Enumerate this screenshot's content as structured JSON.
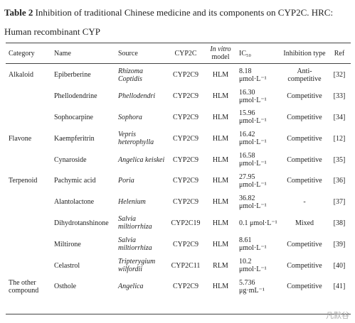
{
  "header": {
    "label": "Table 2",
    "title": "Inhibition of traditional Chinese medicine and its components on CYP2C. HRC: Human recombinant CYP"
  },
  "table": {
    "columns": {
      "category": "Category",
      "name": "Name",
      "source": "Source",
      "enzyme": "CYP2C",
      "model_italic": "In vitro",
      "model": "model",
      "ic50": "IC₅₀",
      "inhibition": "Inhibition type",
      "ref": "Ref"
    },
    "rows": [
      {
        "category": "Alkaloid",
        "name": "Epiberberine",
        "source": "Rhizoma Coptidis",
        "enzyme": "CYP2C9",
        "model": "HLM",
        "ic50_value": "8.18",
        "ic50_unit": "μmol·L⁻¹",
        "inhibition": "Anti-competitive",
        "ref": "[32]"
      },
      {
        "name": "Phellodendrine",
        "source": "Phellodendri",
        "enzyme": "CYP2C9",
        "model": "HLM",
        "ic50_value": "16.30",
        "ic50_unit": "μmol·L⁻¹",
        "inhibition": "Competitive",
        "ref": "[33]"
      },
      {
        "name": "Sophocarpine",
        "source": "Sophora",
        "enzyme": "CYP2C9",
        "model": "HLM",
        "ic50_value": "15.96",
        "ic50_unit": "μmol·L⁻¹",
        "inhibition": "Competitive",
        "ref": "[34]"
      },
      {
        "category": "Flavone",
        "name": "Kaempferitrin",
        "source": "Vepris heterophylla",
        "enzyme": "CYP2C9",
        "model": "HLM",
        "ic50_value": "16.42",
        "ic50_unit": "μmol·L⁻¹",
        "inhibition": "Competitive",
        "ref": "[12]"
      },
      {
        "name": "Cynaroside",
        "source": "Angelica keiskei",
        "enzyme": "CYP2C9",
        "model": "HLM",
        "ic50_value": "16.58",
        "ic50_unit": "μmol·L⁻¹",
        "inhibition": "Competitive",
        "ref": "[35]"
      },
      {
        "category": "Terpenoid",
        "name": "Pachymic acid",
        "source": "Poria",
        "enzyme": "CYP2C9",
        "model": "HLM",
        "ic50_value": "27.95",
        "ic50_unit": "μmol·L⁻¹",
        "inhibition": "Competitive",
        "ref": "[36]"
      },
      {
        "name": "Alantolactone",
        "source": "Helenium",
        "enzyme": "CYP2C9",
        "model": "HLM",
        "ic50_value": "36.82",
        "ic50_unit": "μmol·L⁻¹",
        "inhibition": "-",
        "ref": "[37]"
      },
      {
        "name": "Dihydrotanshinone",
        "source": "Salvia miltiorrhiza",
        "enzyme": "CYP2C19",
        "model": "HLM",
        "ic50_value": "0.1",
        "ic50_unit": "μmol·L⁻¹",
        "inhibition": "Mixed",
        "ref": "[38]"
      },
      {
        "name": "Miltirone",
        "source": "Salvia miltiorrhiza",
        "enzyme": "CYP2C9",
        "model": "HLM",
        "ic50_value": "8.61",
        "ic50_unit": "μmol·L⁻¹",
        "inhibition": "Competitive",
        "ref": "[39]"
      },
      {
        "name": "Celastrol",
        "source": "Tripterygium wilfordii",
        "enzyme": "CYP2C11",
        "model": "RLM",
        "ic50_value": "10.2",
        "ic50_unit": "μmol·L⁻¹",
        "inhibition": "Competitive",
        "ref": "[40]"
      },
      {
        "category": "The other compound",
        "name": "Osthole",
        "source": "Angelica",
        "enzyme": "CYP2C9",
        "model": "HLM",
        "ic50_value": "5.736",
        "ic50_unit": "μg·mL⁻¹",
        "inhibition": "Competitive",
        "ref": "[41]"
      }
    ]
  },
  "watermark": "凡默谷"
}
